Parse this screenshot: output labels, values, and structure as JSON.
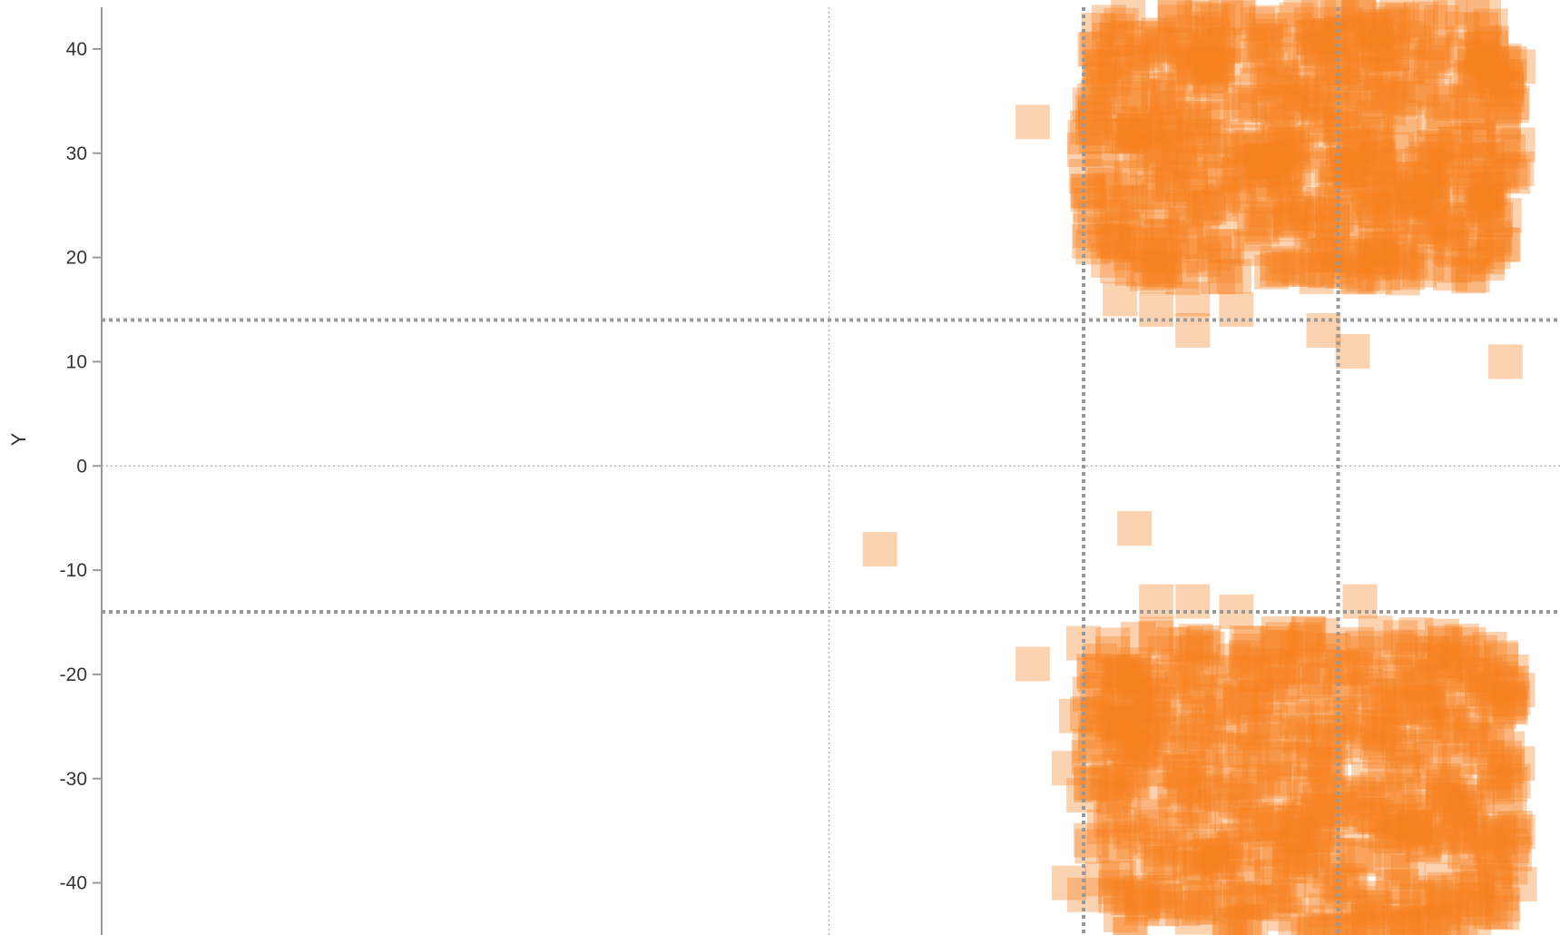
{
  "chart_data": {
    "type": "scatter",
    "title": "",
    "xlabel": "",
    "ylabel": "Y",
    "xlim": [
      -10,
      10
    ],
    "ylim": [
      -45,
      44
    ],
    "yticks": [
      40,
      30,
      20,
      10,
      0,
      -10,
      -20,
      -30,
      -40
    ],
    "grid": false,
    "x_zero_line": 0,
    "y_zero_line": 0,
    "x_reference_lines": [
      3.5,
      7.0
    ],
    "y_reference_lines": [
      14,
      -14
    ],
    "marker": {
      "shape": "square",
      "color": "#f5821f",
      "opacity": 0.35
    },
    "series": [
      {
        "clusters": [
          {
            "region": "upper",
            "x_range": [
              3.5,
              9.5
            ],
            "y_range": [
              18,
              44
            ]
          },
          {
            "region": "lower",
            "x_range": [
              3.5,
              9.5
            ],
            "y_range": [
              -45,
              -16
            ]
          }
        ],
        "isolated_points": [
          {
            "x": 2.8,
            "y": 33
          },
          {
            "x": 4.0,
            "y": 16
          },
          {
            "x": 4.5,
            "y": 15
          },
          {
            "x": 5.0,
            "y": 16
          },
          {
            "x": 5.0,
            "y": 13
          },
          {
            "x": 5.6,
            "y": 15
          },
          {
            "x": 6.8,
            "y": 13
          },
          {
            "x": 7.2,
            "y": 11
          },
          {
            "x": 9.3,
            "y": 10
          },
          {
            "x": 0.7,
            "y": -8
          },
          {
            "x": 4.2,
            "y": -6
          },
          {
            "x": 4.5,
            "y": -13
          },
          {
            "x": 5.0,
            "y": -13
          },
          {
            "x": 5.6,
            "y": -14
          },
          {
            "x": 7.3,
            "y": -13
          },
          {
            "x": 5.0,
            "y": -18
          },
          {
            "x": 3.5,
            "y": -17
          },
          {
            "x": 3.9,
            "y": -18
          },
          {
            "x": 2.8,
            "y": -19
          },
          {
            "x": 3.4,
            "y": -24
          },
          {
            "x": 3.3,
            "y": -29
          },
          {
            "x": 3.3,
            "y": -40
          }
        ]
      }
    ]
  }
}
